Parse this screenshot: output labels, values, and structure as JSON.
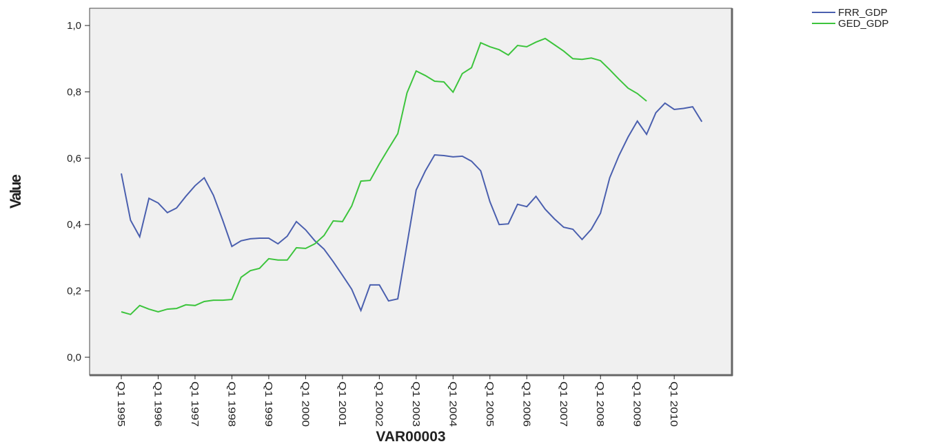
{
  "chart_data": {
    "type": "line",
    "y_label": "Value",
    "x_label": "VAR00003",
    "categories": [
      "Q1 1995",
      null,
      null,
      null,
      "Q1 1996",
      null,
      null,
      null,
      "Q1 1997",
      null,
      null,
      null,
      "Q1 1998",
      null,
      null,
      null,
      "Q1 1999",
      null,
      null,
      null,
      "Q1 2000",
      null,
      null,
      null,
      "Q1 2001",
      null,
      null,
      null,
      "Q1 2002",
      null,
      null,
      null,
      "Q1 2003",
      null,
      null,
      null,
      "Q1 2004",
      null,
      null,
      null,
      "Q1 2005",
      null,
      null,
      null,
      "Q1 2006",
      null,
      null,
      null,
      "Q1 2007",
      null,
      null,
      null,
      "Q1 2008",
      null,
      null,
      null,
      "Q1 2009",
      null,
      null,
      null,
      "Q1 2010",
      null,
      null,
      null
    ],
    "series": [
      {
        "name": "FRR_GDP",
        "color": "#4a5fae",
        "values": [
          0.554,
          0.413,
          0.363,
          0.479,
          0.465,
          0.436,
          0.45,
          0.485,
          0.517,
          0.541,
          0.488,
          0.413,
          0.334,
          0.351,
          0.357,
          0.359,
          0.359,
          0.342,
          0.365,
          0.409,
          0.384,
          0.351,
          0.326,
          0.288,
          0.247,
          0.205,
          0.141,
          0.218,
          0.218,
          0.17,
          0.176,
          0.34,
          0.504,
          0.562,
          0.61,
          0.608,
          0.604,
          0.606,
          0.591,
          0.562,
          0.469,
          0.4,
          0.402,
          0.461,
          0.454,
          0.485,
          0.446,
          0.417,
          0.392,
          0.386,
          0.355,
          0.386,
          0.434,
          0.541,
          0.608,
          0.664,
          0.712,
          0.672,
          0.737,
          0.766,
          0.747,
          0.75,
          0.755,
          0.71
        ]
      },
      {
        "name": "GED_GDP",
        "color": "#3cc43c",
        "values": [
          0.137,
          0.129,
          0.156,
          0.145,
          0.137,
          0.145,
          0.147,
          0.158,
          0.156,
          0.168,
          0.172,
          0.172,
          0.174,
          0.241,
          0.261,
          0.268,
          0.297,
          0.293,
          0.293,
          0.33,
          0.328,
          0.342,
          0.367,
          0.411,
          0.409,
          0.456,
          0.531,
          0.533,
          0.583,
          0.629,
          0.674,
          0.797,
          0.863,
          0.849,
          0.832,
          0.83,
          0.799,
          0.855,
          0.873,
          0.948,
          0.936,
          0.927,
          0.911,
          0.94,
          0.936,
          0.95,
          0.961,
          0.942,
          0.923,
          0.9,
          0.898,
          0.902,
          0.894,
          0.867,
          0.838,
          0.811,
          0.795,
          0.772,
          null,
          null,
          null,
          null,
          null,
          null
        ]
      }
    ],
    "ylim": [
      -0.054,
      1.052
    ],
    "yticks": [
      {
        "value": 0,
        "label": "0,0"
      },
      {
        "value": 0.2,
        "label": "0,2"
      },
      {
        "value": 0.4,
        "label": "0,4"
      },
      {
        "value": 0.6,
        "label": "0,6"
      },
      {
        "value": 0.8,
        "label": "0,8"
      },
      {
        "value": 1,
        "label": "1,0"
      }
    ],
    "grid": false,
    "legend": "top-right"
  }
}
